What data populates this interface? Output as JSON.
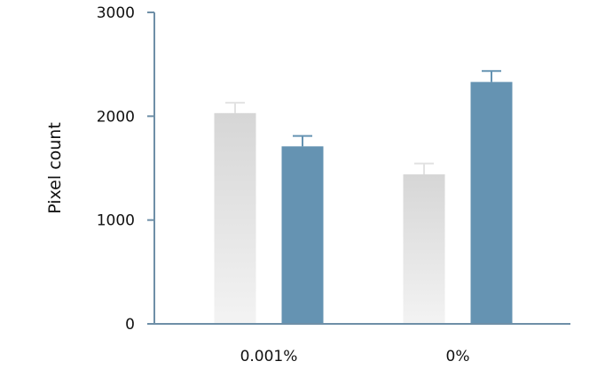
{
  "chart_data": {
    "type": "bar",
    "categories": [
      "0.001%",
      "0%"
    ],
    "series": [
      {
        "values": [
          2030,
          1440
        ],
        "errors": [
          100,
          105
        ],
        "color": "#d6d6d6",
        "color_light": "#f3f3f3",
        "error_color": "#e2e2e2"
      },
      {
        "values": [
          1710,
          2330
        ],
        "errors": [
          100,
          105
        ],
        "color": "#6593b2",
        "error_color": "#6593b2"
      }
    ],
    "title": "",
    "xlabel": "",
    "ylabel": "Pixel count",
    "ylim": [
      0,
      3000
    ],
    "yticks": [
      0,
      1000,
      2000,
      3000
    ],
    "axis_color": "#6e8fa7",
    "grid": false,
    "legend": "none"
  }
}
